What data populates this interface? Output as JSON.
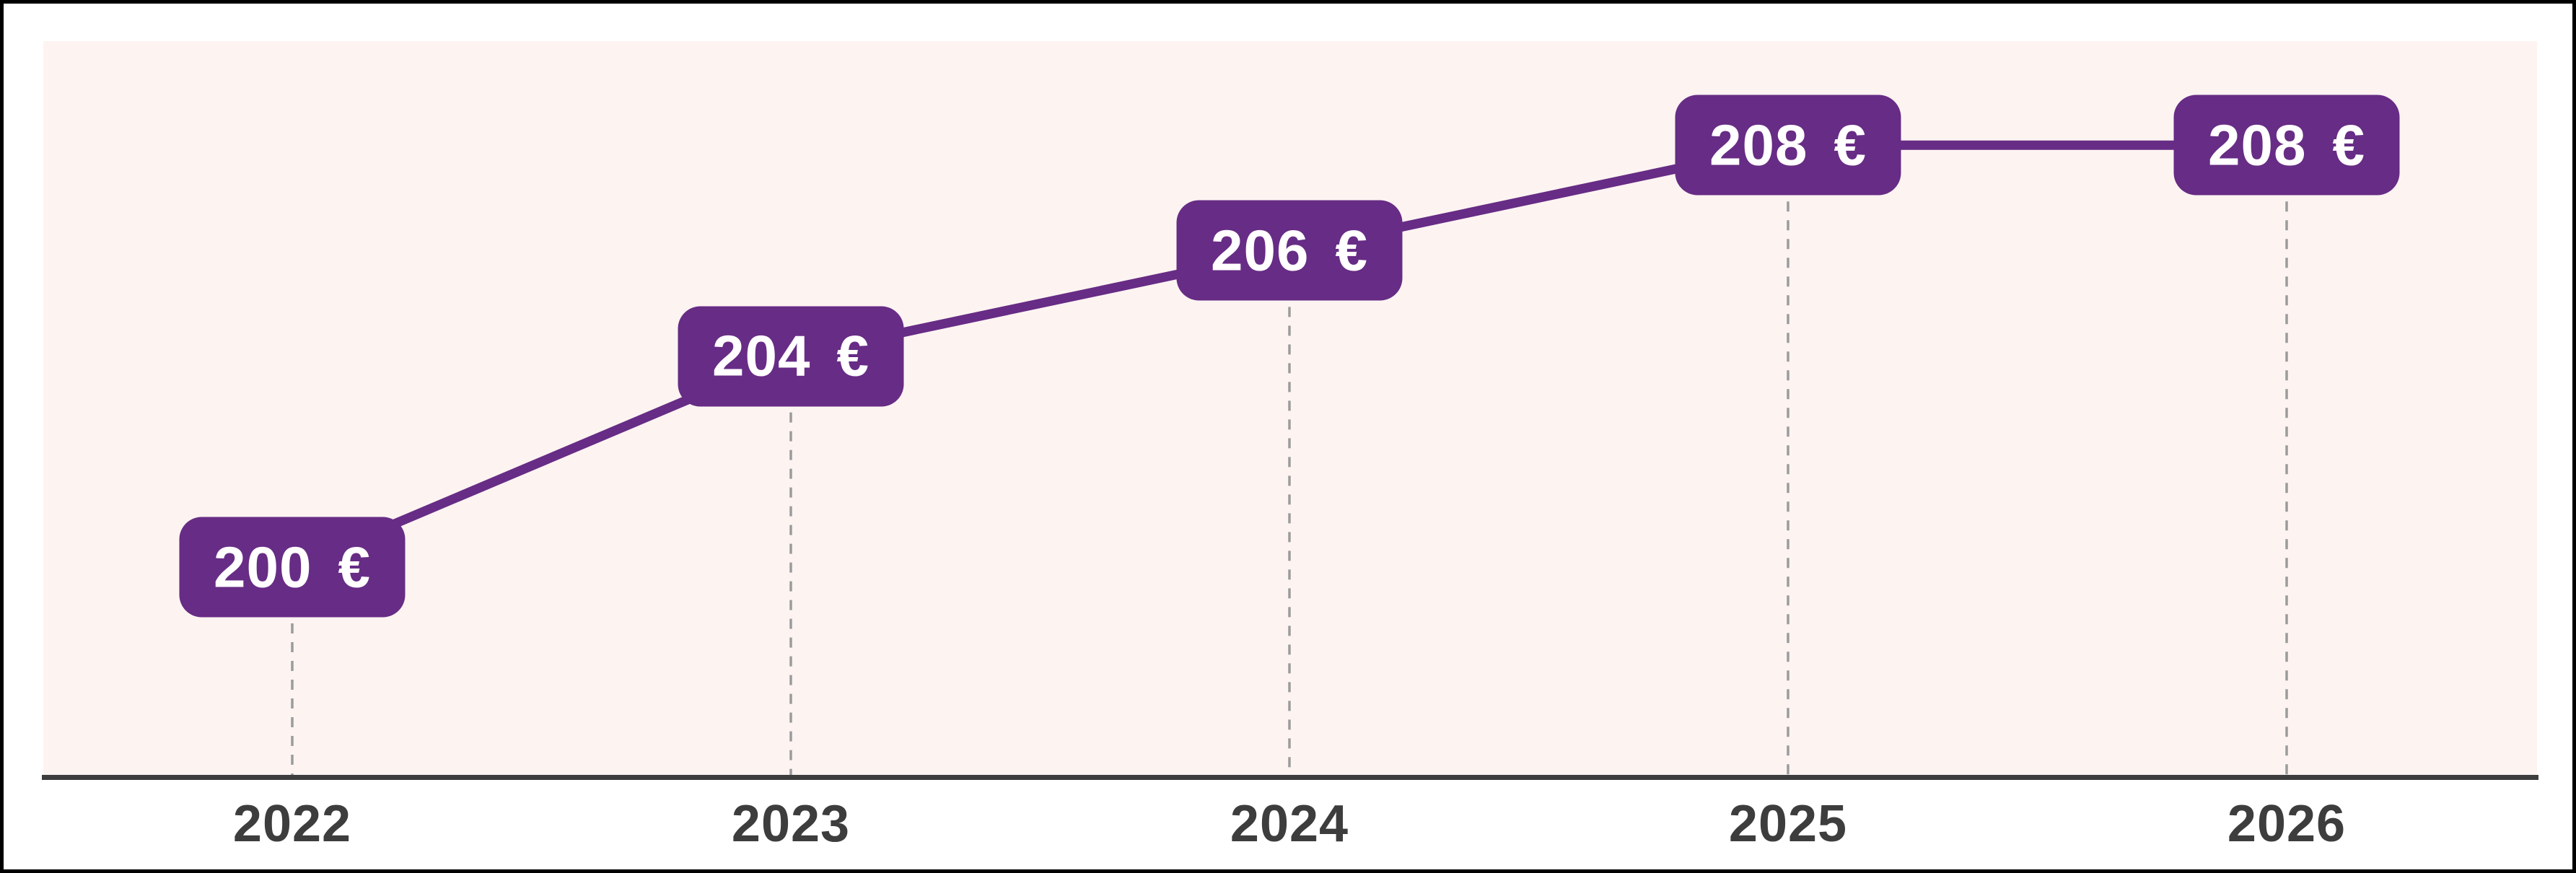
{
  "chart_data": {
    "type": "line",
    "categories": [
      "2022",
      "2023",
      "2024",
      "2025",
      "2026"
    ],
    "series": [
      {
        "name": "price-eur",
        "values": [
          200,
          204,
          206,
          208,
          208
        ]
      }
    ],
    "point_labels": [
      {
        "value": "200",
        "currency": "€"
      },
      {
        "value": "204",
        "currency": "€"
      },
      {
        "value": "206",
        "currency": "€"
      },
      {
        "value": "208",
        "currency": "€"
      },
      {
        "value": "208",
        "currency": "€"
      }
    ],
    "title": "",
    "xlabel": "",
    "ylabel": "",
    "ylim": [
      192,
      212
    ],
    "grid": "vertical-dashed-drop-lines",
    "legend": "none",
    "colors": {
      "accent": "#672c85",
      "label_text": "#ffffff",
      "panel_bg": "#fdf4f2",
      "margin_bg": "#ffffff",
      "axis_color": "#3d3d3d",
      "axis_text": "#3d3d3d",
      "dash_color": "#9b9b9b",
      "frame_color": "#000000"
    }
  }
}
